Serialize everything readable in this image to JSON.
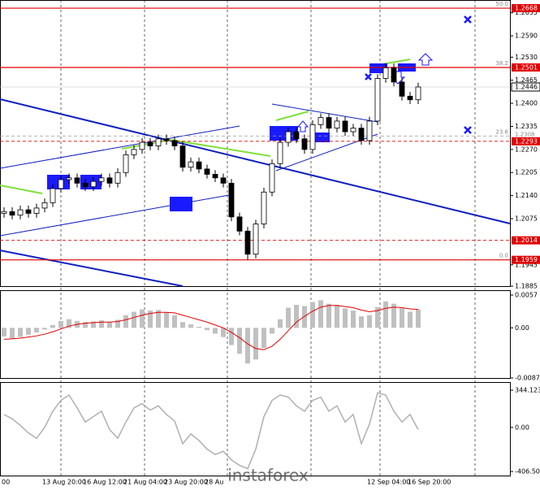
{
  "chart_data": {
    "type": "candlestick",
    "watermark": "instaforex",
    "categories": [
      "00",
      null,
      null,
      null,
      null,
      "13 Aug 20:00",
      null,
      null,
      null,
      null,
      "16 Aug 12:00",
      null,
      null,
      null,
      null,
      "21 Aug 04:00",
      null,
      null,
      null,
      null,
      "23 Aug 20:00",
      null,
      null,
      null,
      null,
      "28 Au",
      null,
      null,
      null,
      null,
      null,
      null,
      null,
      null,
      null,
      null,
      null,
      null,
      null,
      null,
      null,
      null,
      null,
      null,
      null,
      "12 Sep 04:00",
      null,
      null,
      null,
      null,
      "16 Sep 20:00",
      null
    ],
    "open": [
      1.209,
      1.2095,
      1.2085,
      1.21,
      1.209,
      1.2105,
      1.212,
      1.216,
      1.2185,
      1.219,
      1.2175,
      1.2165,
      1.218,
      1.219,
      1.2175,
      1.2205,
      1.2255,
      1.227,
      1.229,
      1.228,
      1.23,
      1.2295,
      1.228,
      1.222,
      1.2235,
      1.2215,
      1.22,
      1.219,
      1.2175,
      1.208,
      1.204,
      1.1975,
      1.206,
      1.215,
      1.223,
      1.229,
      1.232,
      1.23,
      1.227,
      1.234,
      1.236,
      1.233,
      1.235,
      1.232,
      1.233,
      1.2295,
      1.235,
      1.247,
      1.25,
      1.246,
      1.242,
      1.241
    ],
    "high": [
      1.2107,
      1.2107,
      1.2112,
      1.2112,
      1.2117,
      1.2132,
      1.2172,
      1.2197,
      1.2202,
      1.2202,
      1.2187,
      1.2192,
      1.2202,
      1.2202,
      1.2217,
      1.2267,
      1.2282,
      1.2302,
      1.2302,
      1.2312,
      1.2312,
      1.2307,
      1.2292,
      1.2247,
      1.2247,
      1.2227,
      1.2212,
      1.2202,
      1.2187,
      1.2092,
      1.2052,
      1.2072,
      1.2162,
      1.2242,
      1.2302,
      1.2332,
      1.2332,
      1.2312,
      1.2352,
      1.2372,
      1.2372,
      1.2362,
      1.2362,
      1.2342,
      1.2342,
      1.2362,
      1.2482,
      1.2512,
      1.2512,
      1.2472,
      1.2432,
      1.2458
    ],
    "low": [
      1.2078,
      1.2073,
      1.2073,
      1.2078,
      1.2078,
      1.2093,
      1.2108,
      1.2148,
      1.2173,
      1.2163,
      1.2153,
      1.2153,
      1.2168,
      1.2163,
      1.2163,
      1.2193,
      1.2243,
      1.2258,
      1.2268,
      1.2268,
      1.2283,
      1.2268,
      1.2208,
      1.2208,
      1.2203,
      1.2188,
      1.2178,
      1.2163,
      1.2068,
      1.2028,
      1.1959,
      1.1963,
      1.2048,
      1.2138,
      1.2218,
      1.2278,
      1.2288,
      1.2258,
      1.2258,
      1.2328,
      1.2318,
      1.2318,
      1.2308,
      1.2308,
      1.2283,
      1.2283,
      1.2338,
      1.2458,
      1.2448,
      1.2408,
      1.2398,
      1.2398
    ],
    "close": [
      1.2095,
      1.2085,
      1.21,
      1.209,
      1.2105,
      1.212,
      1.216,
      1.2185,
      1.219,
      1.2175,
      1.2165,
      1.218,
      1.219,
      1.2175,
      1.2205,
      1.2255,
      1.227,
      1.229,
      1.228,
      1.23,
      1.2295,
      1.228,
      1.222,
      1.2235,
      1.2215,
      1.22,
      1.219,
      1.2175,
      1.208,
      1.204,
      1.1975,
      1.206,
      1.215,
      1.223,
      1.229,
      1.232,
      1.23,
      1.227,
      1.234,
      1.236,
      1.233,
      1.235,
      1.232,
      1.233,
      1.2295,
      1.235,
      1.247,
      1.25,
      1.246,
      1.242,
      1.241,
      1.2446
    ],
    "ylim": [
      1.1885,
      1.2691
    ],
    "yticks": [
      1.2655,
      {
        "value": 1.259,
        "label": "1.2590"
      },
      {
        "value": 1.253,
        "label": "1.2530"
      },
      1.2465,
      {
        "value": 1.24,
        "label": "1.2400"
      },
      1.2335,
      {
        "value": 1.227,
        "label": "1.2270"
      },
      1.2205,
      {
        "value": 1.214,
        "label": "1.2140"
      },
      1.2075,
      1.1945,
      1.1885
    ],
    "levels": [
      {
        "value": 1.2668,
        "label": "1.2668",
        "fib": "50.0",
        "color": "#e00000",
        "dash": false
      },
      {
        "value": 1.2501,
        "label": "1.2501",
        "fib": "38.2",
        "color": "#e00000",
        "dash": false
      },
      {
        "value": 1.2308,
        "label": "1.2308",
        "fib": "23.6",
        "color": "#999999",
        "dash": true
      },
      {
        "value": 1.2293,
        "label": "1.2293",
        "color": "#e00000",
        "dash": true
      },
      {
        "value": 1.2014,
        "label": "1.2014",
        "color": "#e00000",
        "dash": true
      },
      {
        "value": 1.1959,
        "label": "1.1959",
        "fib": "0.0",
        "color": "#e00000",
        "dash": false
      }
    ],
    "current": {
      "value": 1.2446,
      "label": "1.2446"
    },
    "macd": {
      "hist": [
        -0.0015,
        -0.0018,
        -0.0016,
        -0.0012,
        -0.0008,
        -0.0003,
        0.0005,
        0.0012,
        0.0015,
        0.0012,
        0.001,
        0.0011,
        0.0013,
        0.001,
        0.0014,
        0.0022,
        0.0028,
        0.0032,
        0.003,
        0.0031,
        0.0027,
        0.0022,
        0.001,
        0.0006,
        0.0002,
        -0.0004,
        -0.001,
        -0.0016,
        -0.003,
        -0.0045,
        -0.0062,
        -0.0055,
        -0.0035,
        -0.001,
        0.0015,
        0.0035,
        0.004,
        0.0038,
        0.0045,
        0.0048,
        0.0042,
        0.004,
        0.0034,
        0.003,
        0.002,
        0.0022,
        0.0036,
        0.0046,
        0.0042,
        0.0034,
        0.0028,
        0.0032
      ],
      "signal": [
        -0.002,
        -0.0019,
        -0.0018,
        -0.0016,
        -0.0014,
        -0.0011,
        -0.0007,
        -0.0002,
        0.0003,
        0.0006,
        0.0008,
        0.0009,
        0.001,
        0.001,
        0.0011,
        0.0014,
        0.0018,
        0.0022,
        0.0025,
        0.0027,
        0.0027,
        0.0026,
        0.0022,
        0.0018,
        0.0014,
        0.001,
        0.0005,
        0.0,
        -0.0008,
        -0.0017,
        -0.0028,
        -0.0036,
        -0.0038,
        -0.0032,
        -0.002,
        -0.0005,
        0.001,
        0.002,
        0.0029,
        0.0036,
        0.0039,
        0.0039,
        0.0037,
        0.0035,
        0.0031,
        0.0028,
        0.003,
        0.0034,
        0.0036,
        0.0035,
        0.0033,
        0.0032
      ],
      "ylim": [
        -0.00873,
        0.0057
      ],
      "yticks": [
        0.0057,
        {
          "value": 0,
          "label": "0.00"
        },
        -0.00873
      ]
    },
    "cci": {
      "values": [
        120,
        80,
        20,
        -50,
        -100,
        0,
        150,
        250,
        300,
        180,
        50,
        100,
        150,
        -20,
        -100,
        50,
        180,
        220,
        160,
        200,
        120,
        60,
        -150,
        -60,
        -120,
        -200,
        -250,
        -220,
        -300,
        -350,
        -380,
        -200,
        100,
        250,
        300,
        280,
        200,
        150,
        250,
        280,
        150,
        200,
        50,
        120,
        -150,
        30,
        320,
        300,
        150,
        50,
        120,
        -20
      ],
      "ylim": [
        -406.505,
        344.1237
      ],
      "yticks": [
        344.1237,
        {
          "value": 0,
          "label": "0.00"
        },
        -406.505
      ]
    }
  }
}
